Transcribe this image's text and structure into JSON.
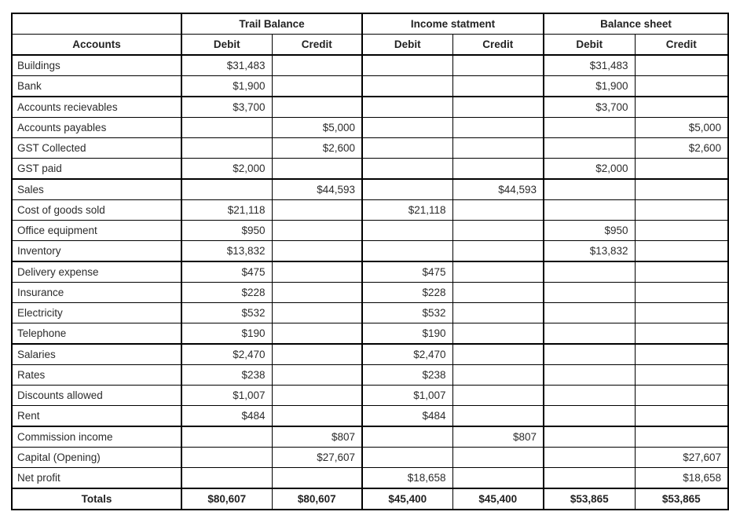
{
  "colors": {
    "border": "#000000",
    "text": "#2b2b2b",
    "background": "#ffffff"
  },
  "table": {
    "accounts_header": "Accounts",
    "column_groups": [
      {
        "label": "Trail Balance",
        "columns": [
          "Debit",
          "Credit"
        ]
      },
      {
        "label": "Income statment",
        "columns": [
          "Debit",
          "Credit"
        ]
      },
      {
        "label": "Balance sheet",
        "columns": [
          "Debit",
          "Credit"
        ]
      }
    ],
    "rows": [
      {
        "account": "Buildings",
        "tb_debit": "$31,483",
        "tb_credit": "",
        "is_debit": "",
        "is_credit": "",
        "bs_debit": "$31,483",
        "bs_credit": "",
        "group_end": false
      },
      {
        "account": "Bank",
        "tb_debit": "$1,900",
        "tb_credit": "",
        "is_debit": "",
        "is_credit": "",
        "bs_debit": "$1,900",
        "bs_credit": "",
        "group_end": true
      },
      {
        "account": "Accounts recievables",
        "tb_debit": "$3,700",
        "tb_credit": "",
        "is_debit": "",
        "is_credit": "",
        "bs_debit": "$3,700",
        "bs_credit": "",
        "group_end": false
      },
      {
        "account": "Accounts payables",
        "tb_debit": "",
        "tb_credit": "$5,000",
        "is_debit": "",
        "is_credit": "",
        "bs_debit": "",
        "bs_credit": "$5,000",
        "group_end": false
      },
      {
        "account": "GST Collected",
        "tb_debit": "",
        "tb_credit": "$2,600",
        "is_debit": "",
        "is_credit": "",
        "bs_debit": "",
        "bs_credit": "$2,600",
        "group_end": false
      },
      {
        "account": "GST paid",
        "tb_debit": "$2,000",
        "tb_credit": "",
        "is_debit": "",
        "is_credit": "",
        "bs_debit": "$2,000",
        "bs_credit": "",
        "group_end": true
      },
      {
        "account": "Sales",
        "tb_debit": "",
        "tb_credit": "$44,593",
        "is_debit": "",
        "is_credit": "$44,593",
        "bs_debit": "",
        "bs_credit": "",
        "group_end": false
      },
      {
        "account": "Cost of goods sold",
        "tb_debit": "$21,118",
        "tb_credit": "",
        "is_debit": "$21,118",
        "is_credit": "",
        "bs_debit": "",
        "bs_credit": "",
        "group_end": false
      },
      {
        "account": "Office equipment",
        "tb_debit": "$950",
        "tb_credit": "",
        "is_debit": "",
        "is_credit": "",
        "bs_debit": "$950",
        "bs_credit": "",
        "group_end": false
      },
      {
        "account": "Inventory",
        "tb_debit": "$13,832",
        "tb_credit": "",
        "is_debit": "",
        "is_credit": "",
        "bs_debit": "$13,832",
        "bs_credit": "",
        "group_end": true
      },
      {
        "account": "Delivery expense",
        "tb_debit": "$475",
        "tb_credit": "",
        "is_debit": "$475",
        "is_credit": "",
        "bs_debit": "",
        "bs_credit": "",
        "group_end": false
      },
      {
        "account": "Insurance",
        "tb_debit": "$228",
        "tb_credit": "",
        "is_debit": "$228",
        "is_credit": "",
        "bs_debit": "",
        "bs_credit": "",
        "group_end": false
      },
      {
        "account": "Electricity",
        "tb_debit": "$532",
        "tb_credit": "",
        "is_debit": "$532",
        "is_credit": "",
        "bs_debit": "",
        "bs_credit": "",
        "group_end": false
      },
      {
        "account": "Telephone",
        "tb_debit": "$190",
        "tb_credit": "",
        "is_debit": "$190",
        "is_credit": "",
        "bs_debit": "",
        "bs_credit": "",
        "group_end": true
      },
      {
        "account": "Salaries",
        "tb_debit": "$2,470",
        "tb_credit": "",
        "is_debit": "$2,470",
        "is_credit": "",
        "bs_debit": "",
        "bs_credit": "",
        "group_end": false
      },
      {
        "account": "Rates",
        "tb_debit": "$238",
        "tb_credit": "",
        "is_debit": "$238",
        "is_credit": "",
        "bs_debit": "",
        "bs_credit": "",
        "group_end": false
      },
      {
        "account": "Discounts allowed",
        "tb_debit": "$1,007",
        "tb_credit": "",
        "is_debit": "$1,007",
        "is_credit": "",
        "bs_debit": "",
        "bs_credit": "",
        "group_end": false
      },
      {
        "account": "Rent",
        "tb_debit": "$484",
        "tb_credit": "",
        "is_debit": "$484",
        "is_credit": "",
        "bs_debit": "",
        "bs_credit": "",
        "group_end": true
      },
      {
        "account": "Commission income",
        "tb_debit": "",
        "tb_credit": "$807",
        "is_debit": "",
        "is_credit": "$807",
        "bs_debit": "",
        "bs_credit": "",
        "group_end": false
      },
      {
        "account": "Capital (Opening)",
        "tb_debit": "",
        "tb_credit": "$27,607",
        "is_debit": "",
        "is_credit": "",
        "bs_debit": "",
        "bs_credit": "$27,607",
        "group_end": false
      },
      {
        "account": "Net profit",
        "tb_debit": "",
        "tb_credit": "",
        "is_debit": "$18,658",
        "is_credit": "",
        "bs_debit": "",
        "bs_credit": "$18,658",
        "group_end": true
      }
    ],
    "totals": {
      "label": "Totals",
      "tb_debit": "$80,607",
      "tb_credit": "$80,607",
      "is_debit": "$45,400",
      "is_credit": "$45,400",
      "bs_debit": "$53,865",
      "bs_credit": "$53,865"
    }
  }
}
